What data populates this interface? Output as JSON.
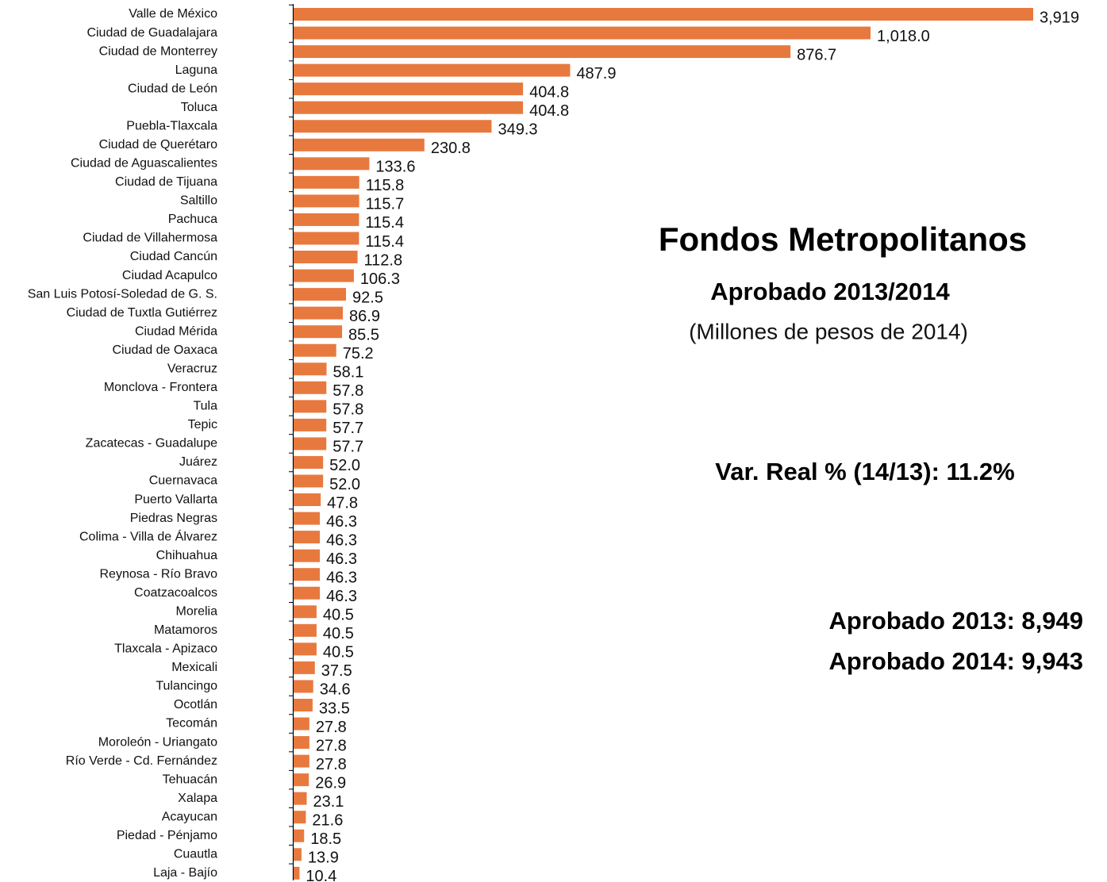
{
  "chart_data": {
    "type": "barh",
    "title": "Fondos Metropolitanos",
    "subtitle": "Aprobado 2013/2014",
    "unit_note": "(Millones de pesos  de 2014)",
    "annotations": [
      "Var. Real % (14/13): 11.2%",
      "Aprobado 2013: 8,949",
      "Aprobado 2014: 9,943"
    ],
    "categories": [
      "Valle de México",
      "Ciudad de Guadalajara",
      "Ciudad de Monterrey",
      "Laguna",
      "Ciudad de León",
      "Toluca",
      "Puebla-Tlaxcala",
      "Ciudad de Querétaro",
      "Ciudad de Aguascalientes",
      "Ciudad de Tijuana",
      "Saltillo",
      "Pachuca",
      "Ciudad de Villahermosa",
      "Ciudad Cancún",
      "Ciudad Acapulco",
      "San Luis Potosí-Soledad de G. S.",
      "Ciudad de Tuxtla Gutiérrez",
      "Ciudad Mérida",
      "Ciudad de Oaxaca",
      "Veracruz",
      "Monclova - Frontera",
      "Tula",
      "Tepic",
      "Zacatecas - Guadalupe",
      "Juárez",
      "Cuernavaca",
      "Puerto Vallarta",
      "Piedras Negras",
      "Colima - Villa de Álvarez",
      "Chihuahua",
      "Reynosa - Río Bravo",
      "Coatzacoalcos",
      "Morelia",
      "Matamoros",
      "Tlaxcala - Apizaco",
      "Mexicali",
      "Tulancingo",
      "Ocotlán",
      "Tecomán",
      "Moroleón - Uriangato",
      "Río Verde - Cd. Fernández",
      "Tehuacán",
      "Xalapa",
      "Acayucan",
      "Piedad - Pénjamo",
      "Cuautla",
      "Laja - Bajío"
    ],
    "values": [
      3919,
      1018.0,
      876.7,
      487.9,
      404.8,
      404.8,
      349.3,
      230.8,
      133.6,
      115.8,
      115.7,
      115.4,
      115.4,
      112.8,
      106.3,
      92.5,
      86.9,
      85.5,
      75.2,
      58.1,
      57.8,
      57.8,
      57.7,
      57.7,
      52.0,
      52.0,
      47.8,
      46.3,
      46.3,
      46.3,
      46.3,
      46.3,
      40.5,
      40.5,
      40.5,
      37.5,
      34.6,
      33.5,
      27.8,
      27.8,
      27.8,
      26.9,
      23.1,
      21.6,
      18.5,
      13.9,
      10.4
    ],
    "value_labels": [
      "3,919",
      "1,018.0",
      "876.7",
      "487.9",
      "404.8",
      "404.8",
      "349.3",
      "230.8",
      "133.6",
      "115.8",
      "115.7",
      "115.4",
      "115.4",
      "112.8",
      "106.3",
      "92.5",
      "86.9",
      "85.5",
      "75.2",
      "58.1",
      "57.8",
      "57.8",
      "57.7",
      "57.7",
      "52.0",
      "52.0",
      "47.8",
      "46.3",
      "46.3",
      "46.3",
      "46.3",
      "46.3",
      "40.5",
      "40.5",
      "40.5",
      "37.5",
      "34.6",
      "33.5",
      "27.8",
      "27.8",
      "27.8",
      "26.9",
      "23.1",
      "21.6",
      "18.5",
      "13.9",
      "10.4"
    ],
    "color": "#e8793e",
    "xlim": [
      0,
      1305
    ]
  }
}
